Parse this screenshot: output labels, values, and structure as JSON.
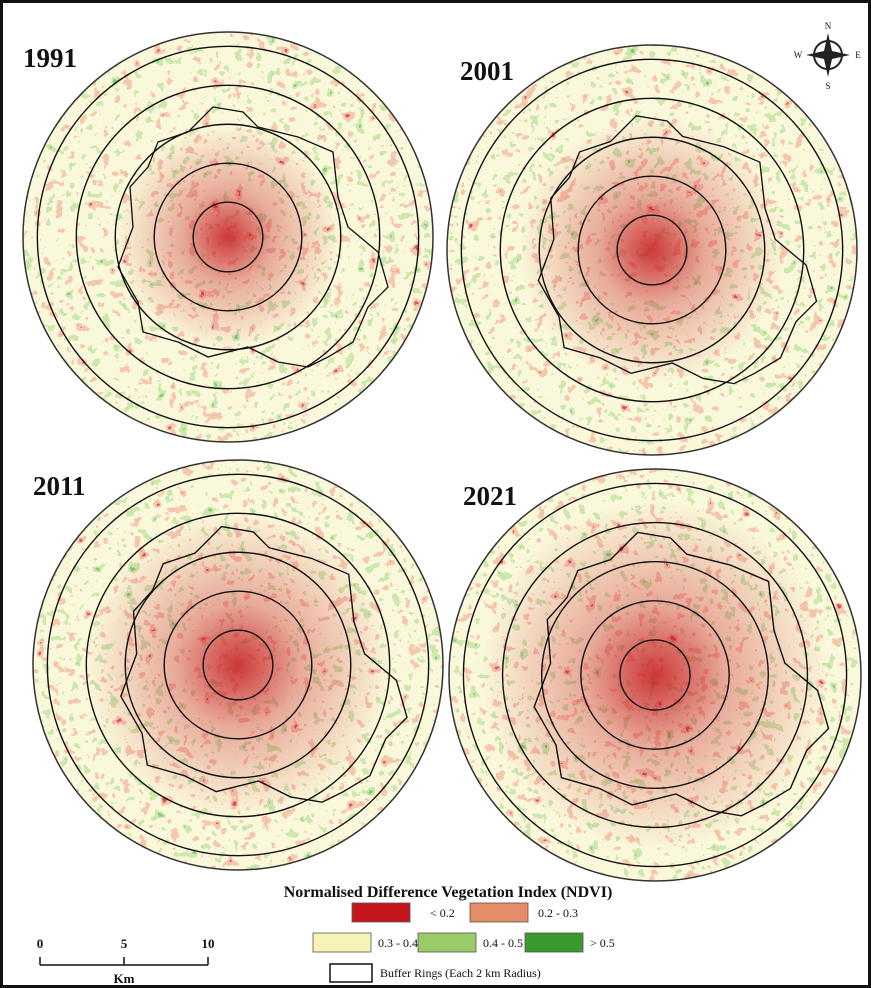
{
  "maps": [
    {
      "label": "1991"
    },
    {
      "label": "2001"
    },
    {
      "label": "2011"
    },
    {
      "label": "2021"
    }
  ],
  "compass": {
    "n": "N",
    "s": "S",
    "e": "E",
    "w": "W"
  },
  "legend": {
    "title": "Normalised Difference Vegetation Index (NDVI)",
    "classes": [
      {
        "label": "< 0.2",
        "color": "#c4161c"
      },
      {
        "label": "0.2 - 0.3",
        "color": "#e48d66"
      },
      {
        "label": "0.3 - 0.4",
        "color": "#f7f2b5"
      },
      {
        "label": "0.4 - 0.5",
        "color": "#9acb69"
      },
      {
        "label": "> 0.5",
        "color": "#3a992d"
      }
    ],
    "rings": "Buffer Rings (Each 2 km Radius)"
  },
  "scale_bar": {
    "ticks": [
      0,
      5,
      10
    ],
    "unit": "Km"
  }
}
